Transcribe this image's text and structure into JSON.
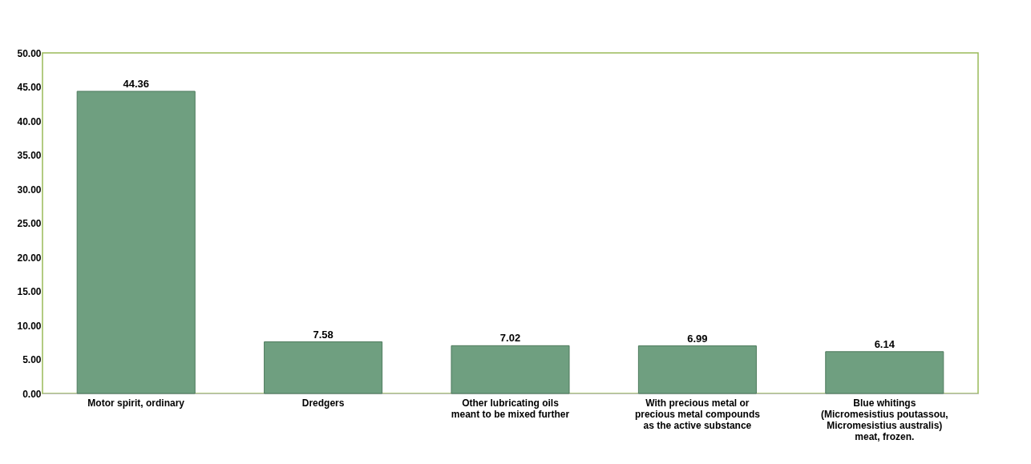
{
  "chart_data": {
    "type": "bar",
    "categories": [
      "Motor spirit, ordinary",
      "Dredgers",
      "Other lubricating oils meant to be mixed further",
      "With precious metal or precious metal compounds as the active substance",
      "Blue whitings (Micromesistius poutassou, Micromesistius australis) meat, frozen."
    ],
    "values": [
      44.36,
      7.58,
      7.02,
      6.99,
      6.14
    ],
    "color": "#6f9f80",
    "ylim": [
      0,
      50
    ],
    "yticks": [
      {
        "value": 0,
        "label": "0.00"
      },
      {
        "value": 5,
        "label": "5.00"
      },
      {
        "value": 10,
        "label": "10.00"
      },
      {
        "value": 15,
        "label": "15.00"
      },
      {
        "value": 20,
        "label": "20.00"
      },
      {
        "value": 25,
        "label": "25.00"
      },
      {
        "value": 30,
        "label": "30.00"
      },
      {
        "value": 35,
        "label": "35.00"
      },
      {
        "value": 40,
        "label": "40.00"
      },
      {
        "value": 45,
        "label": "45.00"
      },
      {
        "value": 50,
        "label": "50.00"
      }
    ],
    "data_labels": true,
    "grid": false
  }
}
